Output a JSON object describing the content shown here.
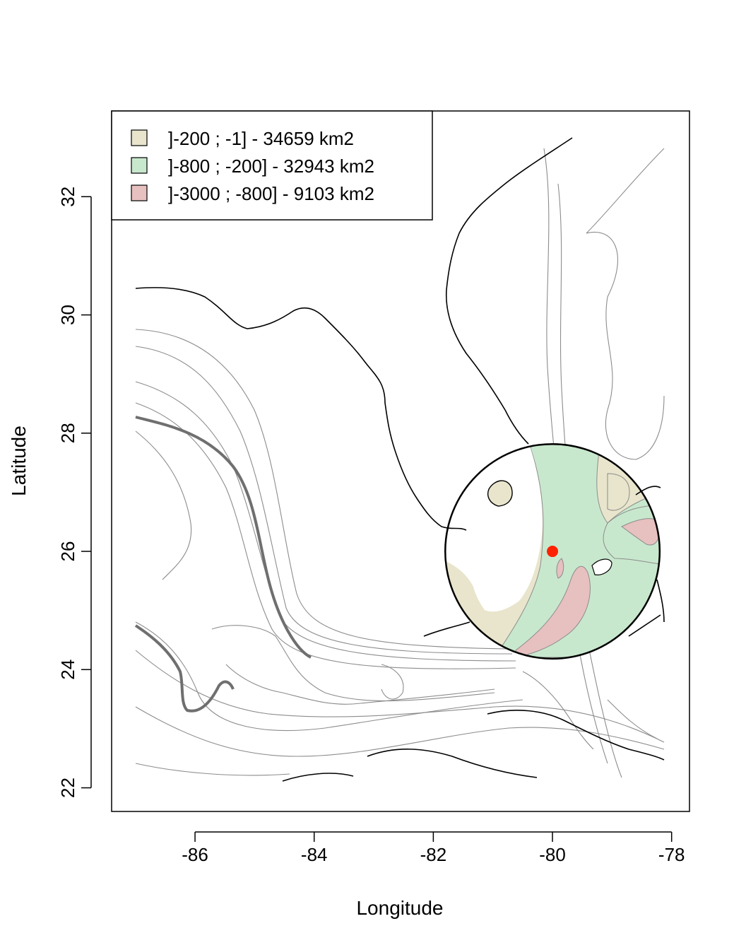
{
  "chart_data": {
    "type": "map",
    "title": "",
    "xlabel": "Longitude",
    "ylabel": "Latitude",
    "xlim": [
      -87.4,
      -77.7
    ],
    "ylim": [
      21.6,
      33.45
    ],
    "x_ticks": [
      -86,
      -84,
      -82,
      -80,
      -78
    ],
    "x_tick_labels": [
      "-86",
      "-84",
      "-82",
      "-80",
      "-78"
    ],
    "y_ticks": [
      22,
      24,
      26,
      28,
      30,
      32
    ],
    "y_tick_labels": [
      "22",
      "24",
      "26",
      "28",
      "30",
      "32"
    ],
    "grid": false,
    "legend_position": "top-left",
    "legend": [
      {
        "label": "]-200 ; -1] - 34659 km2",
        "color": "#e8e5cc"
      },
      {
        "label": "]-800 ; -200] - 32943 km2",
        "color": "#c8e8cd"
      },
      {
        "label": "]-3000 ; -800] - 9103 km2",
        "color": "#e7c0c0"
      }
    ],
    "center_point": {
      "lon": -80.0,
      "lat": 26.0,
      "color": "#ff2200"
    },
    "buffer_circle": {
      "center_lon": -80.0,
      "center_lat": 26.0,
      "radius_deg_lon": 1.8
    },
    "colors": {
      "coastline": "#000000",
      "isobath": "#8c8c8c",
      "frame": "#000000"
    }
  }
}
